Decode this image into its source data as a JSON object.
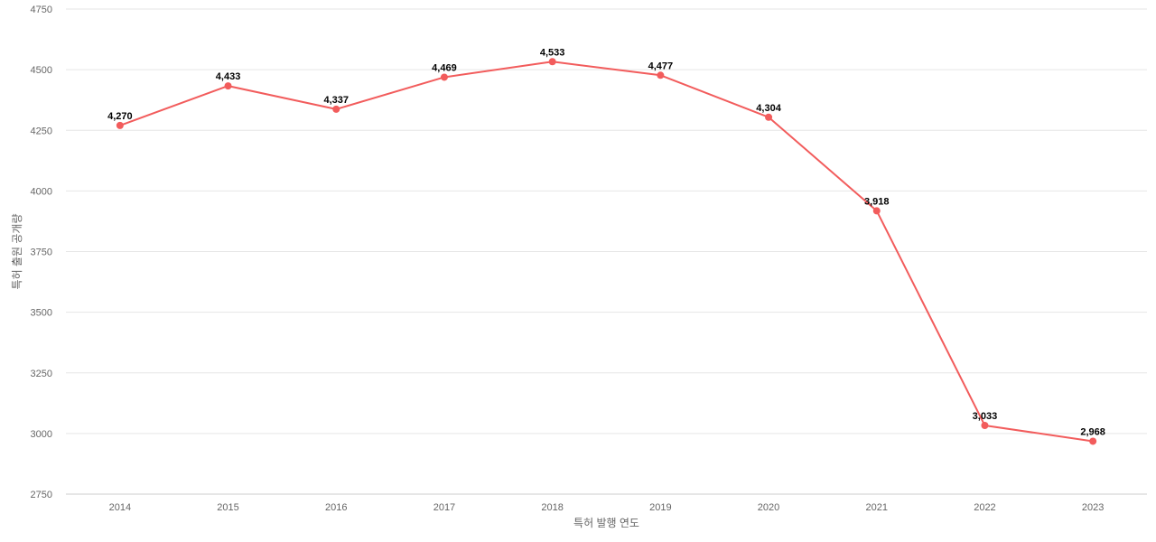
{
  "chart_data": {
    "type": "line",
    "title": "",
    "xlabel": "특허 발행 연도",
    "ylabel": "특허 출원 공개량",
    "categories": [
      "2014",
      "2015",
      "2016",
      "2017",
      "2018",
      "2019",
      "2020",
      "2021",
      "2022",
      "2023"
    ],
    "series": [
      {
        "values": [
          4270,
          4433,
          4337,
          4469,
          4533,
          4477,
          4304,
          3918,
          3033,
          2968
        ],
        "data_labels": [
          "4,270",
          "4,433",
          "4,337",
          "4,469",
          "4,533",
          "4,477",
          "4,304",
          "3,918",
          "3,033",
          "2,968"
        ],
        "color": "#f25c5c"
      }
    ],
    "ylim": [
      2750,
      4750
    ],
    "yticks": [
      "2750",
      "3000",
      "3250",
      "3500",
      "3750",
      "4000",
      "4250",
      "4500",
      "4750"
    ],
    "grid": true,
    "legend": "none"
  }
}
